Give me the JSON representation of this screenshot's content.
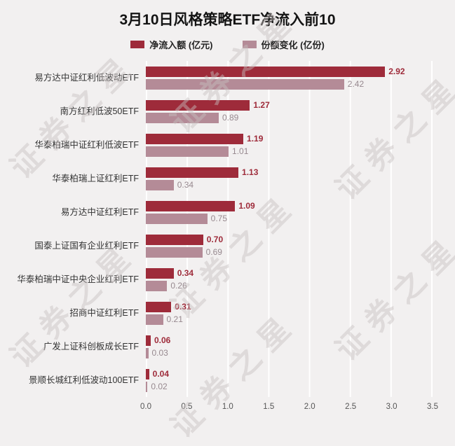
{
  "title": "3月10日风格策略ETF净流入前10",
  "watermark": "证券之星",
  "legend": {
    "inflow": {
      "label": "净流入额 (亿元)",
      "color": "#9e2b3a"
    },
    "change": {
      "label": "份额变化 (亿份)",
      "color": "#b48b97"
    }
  },
  "chart_data": {
    "type": "bar",
    "orientation": "horizontal",
    "title": "3月10日风格策略ETF净流入前10",
    "categories": [
      "易方达中证红利低波动ETF",
      "南方红利低波50ETF",
      "华泰柏瑞中证红利低波ETF",
      "华泰柏瑞上证红利ETF",
      "易方达中证红利ETF",
      "国泰上证国有企业红利ETF",
      "华泰柏瑞中证中央企业红利ETF",
      "招商中证红利ETF",
      "广发上证科创板成长ETF",
      "景顺长城红利低波动100ETF"
    ],
    "series": [
      {
        "name": "净流入额 (亿元)",
        "color": "#9e2b3a",
        "values": [
          2.92,
          1.27,
          1.19,
          1.13,
          1.09,
          0.7,
          0.34,
          0.31,
          0.06,
          0.04
        ]
      },
      {
        "name": "份额变化 (亿份)",
        "color": "#b48b97",
        "values": [
          2.42,
          0.89,
          1.01,
          0.34,
          0.75,
          0.69,
          0.26,
          0.21,
          0.03,
          0.02
        ]
      }
    ],
    "xlim": [
      0,
      3.5
    ],
    "x_ticks": [
      "0.0",
      "0.5",
      "1.0",
      "1.5",
      "2.0",
      "2.5",
      "3.0",
      "3.5"
    ],
    "grid": true,
    "legend_position": "top"
  }
}
